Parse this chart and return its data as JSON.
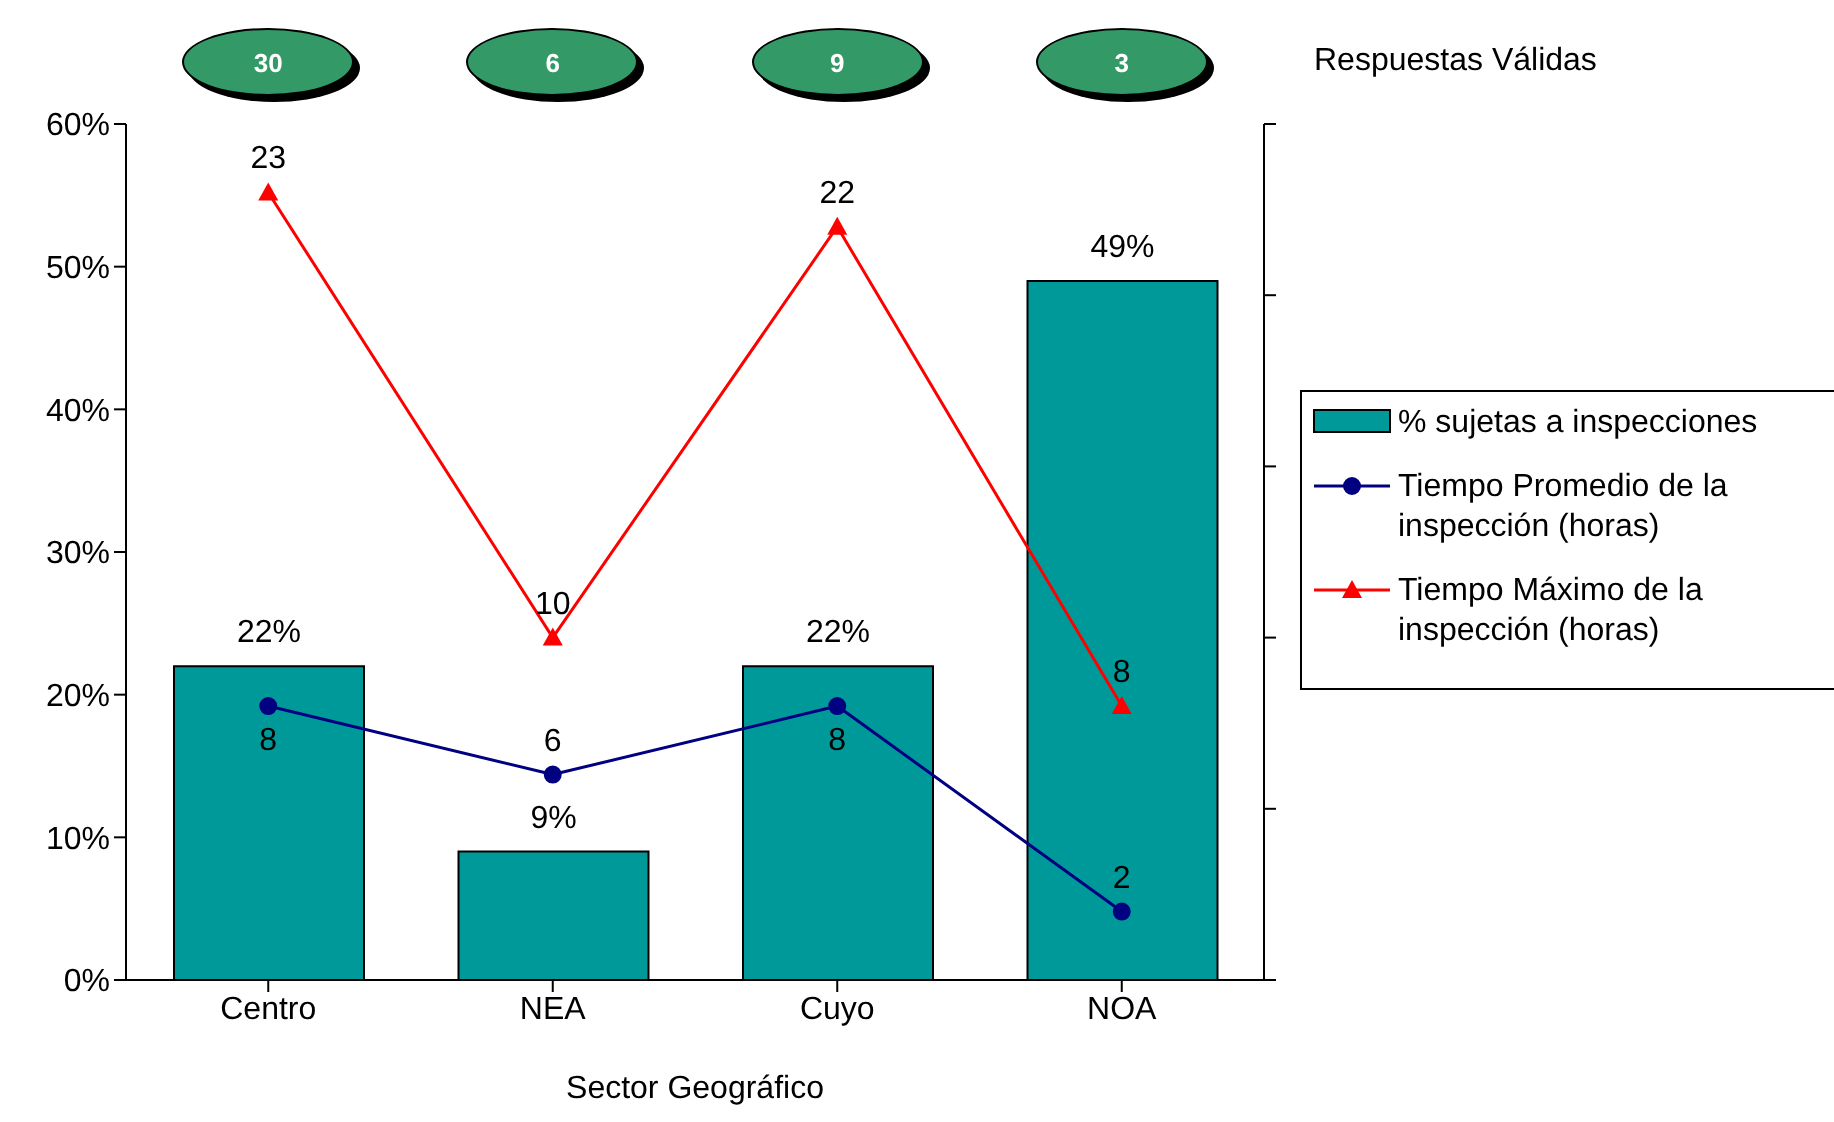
{
  "chart_data": {
    "type": "bar",
    "xlabel": "Sector Geográfico",
    "categories": [
      "Centro",
      "NEA",
      "Cuyo",
      "NOA"
    ],
    "series": [
      {
        "name": "% sujetas a inspecciones",
        "color": "#009999",
        "values": [
          22,
          9,
          22,
          49
        ],
        "value_labels": [
          "22%",
          "9%",
          "22%",
          "49%"
        ]
      },
      {
        "name": "Tiempo Promedio de la inspección (horas)",
        "type": "line",
        "axis": "y2",
        "color": "#000080",
        "marker": "circle",
        "values": [
          8,
          6,
          8,
          2
        ],
        "value_labels": [
          "8",
          "6",
          "8",
          "2"
        ]
      },
      {
        "name": "Tiempo Máximo de la inspección (horas)",
        "type": "line",
        "axis": "y2",
        "color": "#ff0000",
        "marker": "triangle",
        "values": [
          23,
          10,
          22,
          8
        ],
        "value_labels": [
          "23",
          "10",
          "22",
          "8"
        ]
      }
    ],
    "ylim": [
      0,
      60
    ],
    "yticks": [
      {
        "value": 0,
        "label": "0%"
      },
      {
        "value": 10,
        "label": "10%"
      },
      {
        "value": 20,
        "label": "20%"
      },
      {
        "value": 30,
        "label": "30%"
      },
      {
        "value": 40,
        "label": "40%"
      },
      {
        "value": 50,
        "label": "50%"
      },
      {
        "value": 60,
        "label": "60%"
      }
    ],
    "y2lim": [
      0,
      25
    ],
    "y2ticks": [
      {
        "value": 0,
        "label": null
      },
      {
        "value": 5,
        "label": null
      },
      {
        "value": 10,
        "label": null
      },
      {
        "value": 15,
        "label": null
      },
      {
        "value": 20,
        "label": null
      },
      {
        "value": 25,
        "label": null
      }
    ],
    "tick_labels": [
      "x",
      "y"
    ],
    "legend": "right",
    "line_style": "solid",
    "annotations": [
      "30",
      "6",
      "9",
      "3",
      "Respuestas Válidas"
    ]
  }
}
